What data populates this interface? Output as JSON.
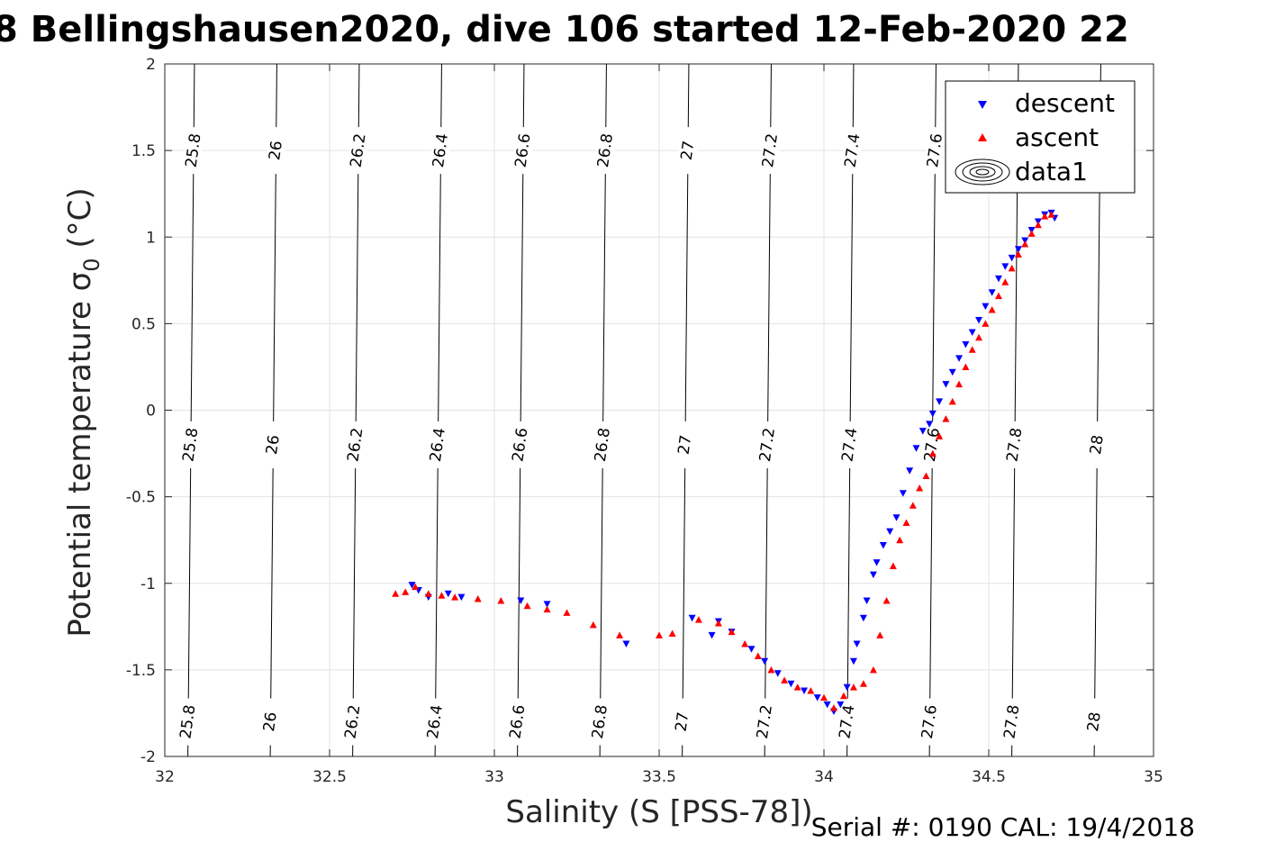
{
  "chart_data": {
    "type": "scatter",
    "title": "8 Bellingshausen2020, dive 106 started 12-Feb-2020 22",
    "xlabel": "Salinity (S [PSS-78])",
    "ylabel": "Potential temperature σ",
    "ylabel_subscript": "0",
    "ylabel_unit": " (°C)",
    "footer": "Serial #: 0190  CAL: 19/4/2018",
    "xlim": [
      32,
      35
    ],
    "ylim": [
      -2,
      2
    ],
    "x_ticks": [
      32,
      32.5,
      33,
      33.5,
      34,
      34.5,
      35
    ],
    "x_tick_labels": [
      "32",
      "32.5",
      "33",
      "33.5",
      "34",
      "34.5",
      "35"
    ],
    "y_ticks": [
      -2,
      -1.5,
      -1,
      -0.5,
      0,
      0.5,
      1,
      1.5,
      2
    ],
    "y_tick_labels": [
      "-2",
      "-1.5",
      "-1",
      "-0.5",
      "0",
      "0.5",
      "1",
      "1.5",
      "2"
    ],
    "grid": true,
    "legend_position": "top-right",
    "contours": [
      {
        "level": "25.8",
        "s_bottom": 32.07,
        "s_top": 32.04
      },
      {
        "level": "26",
        "s_bottom": 32.32,
        "s_top": 32.29
      },
      {
        "level": "26.2",
        "s_bottom": 32.57,
        "s_top": 32.54
      },
      {
        "level": "26.4",
        "s_bottom": 32.82,
        "s_top": 32.79
      },
      {
        "level": "26.6",
        "s_bottom": 33.07,
        "s_top": 33.04
      },
      {
        "level": "26.8",
        "s_bottom": 33.32,
        "s_top": 33.29
      },
      {
        "level": "27",
        "s_bottom": 33.57,
        "s_top": 33.54
      },
      {
        "level": "27.2",
        "s_bottom": 33.82,
        "s_top": 33.79
      },
      {
        "level": "27.4",
        "s_bottom": 34.07,
        "s_top": 34.04
      },
      {
        "level": "27.6",
        "s_bottom": 34.32,
        "s_top": 34.29
      },
      {
        "level": "27.8",
        "s_bottom": 34.57,
        "s_top": 34.54
      },
      {
        "level": "28",
        "s_bottom": 34.82,
        "s_top": 34.79
      }
    ],
    "series": [
      {
        "name": "descent",
        "color": "#0000ff",
        "marker": "triangle-down",
        "x": [
          32.75,
          32.77,
          32.8,
          32.86,
          32.9,
          33.08,
          33.16,
          33.4,
          33.6,
          33.66,
          33.68,
          33.72,
          33.78,
          33.82,
          33.86,
          33.9,
          33.94,
          33.98,
          34.01,
          34.03,
          34.05,
          34.07,
          34.09,
          34.1,
          34.12,
          34.13,
          34.15,
          34.16,
          34.18,
          34.2,
          34.22,
          34.24,
          34.26,
          34.28,
          34.3,
          34.32,
          34.33,
          34.35,
          34.37,
          34.39,
          34.41,
          34.43,
          34.45,
          34.47,
          34.49,
          34.51,
          34.53,
          34.55,
          34.57,
          34.59,
          34.61,
          34.63,
          34.65,
          34.67,
          34.69,
          34.7
        ],
        "y": [
          -1.01,
          -1.04,
          -1.08,
          -1.06,
          -1.08,
          -1.1,
          -1.12,
          -1.35,
          -1.2,
          -1.3,
          -1.22,
          -1.28,
          -1.38,
          -1.45,
          -1.52,
          -1.58,
          -1.62,
          -1.66,
          -1.7,
          -1.74,
          -1.7,
          -1.6,
          -1.45,
          -1.35,
          -1.2,
          -1.1,
          -0.95,
          -0.88,
          -0.78,
          -0.7,
          -0.62,
          -0.48,
          -0.35,
          -0.22,
          -0.12,
          -0.08,
          -0.02,
          0.05,
          0.15,
          0.22,
          0.3,
          0.38,
          0.45,
          0.52,
          0.6,
          0.68,
          0.76,
          0.83,
          0.88,
          0.93,
          0.98,
          1.04,
          1.09,
          1.13,
          1.14,
          1.11
        ]
      },
      {
        "name": "ascent",
        "color": "#ff0000",
        "marker": "triangle-up",
        "x": [
          32.7,
          32.73,
          32.76,
          32.8,
          32.84,
          32.88,
          32.95,
          33.02,
          33.1,
          33.16,
          33.22,
          33.3,
          33.38,
          33.5,
          33.54,
          33.62,
          33.68,
          33.72,
          33.76,
          33.8,
          33.84,
          33.88,
          33.92,
          33.96,
          34.0,
          34.03,
          34.06,
          34.09,
          34.12,
          34.15,
          34.17,
          34.19,
          34.21,
          34.23,
          34.25,
          34.27,
          34.29,
          34.31,
          34.33,
          34.35,
          34.37,
          34.39,
          34.41,
          34.43,
          34.45,
          34.47,
          34.49,
          34.51,
          34.53,
          34.55,
          34.57,
          34.59,
          34.61,
          34.63,
          34.65,
          34.67,
          34.69
        ],
        "y": [
          -1.06,
          -1.05,
          -1.02,
          -1.06,
          -1.07,
          -1.08,
          -1.09,
          -1.1,
          -1.13,
          -1.15,
          -1.17,
          -1.24,
          -1.3,
          -1.3,
          -1.29,
          -1.21,
          -1.23,
          -1.28,
          -1.35,
          -1.42,
          -1.5,
          -1.56,
          -1.6,
          -1.62,
          -1.66,
          -1.72,
          -1.65,
          -1.6,
          -1.58,
          -1.5,
          -1.3,
          -1.1,
          -0.9,
          -0.75,
          -0.65,
          -0.55,
          -0.45,
          -0.38,
          -0.25,
          -0.15,
          -0.05,
          0.05,
          0.15,
          0.25,
          0.35,
          0.42,
          0.5,
          0.58,
          0.66,
          0.74,
          0.82,
          0.9,
          0.96,
          1.02,
          1.07,
          1.12,
          1.13
        ]
      }
    ],
    "legend": [
      {
        "label": "descent",
        "marker": "triangle-down",
        "color": "#0000ff"
      },
      {
        "label": "ascent",
        "marker": "triangle-up",
        "color": "#ff0000"
      },
      {
        "label": "data1",
        "marker": "contour",
        "color": "#000000"
      }
    ]
  }
}
